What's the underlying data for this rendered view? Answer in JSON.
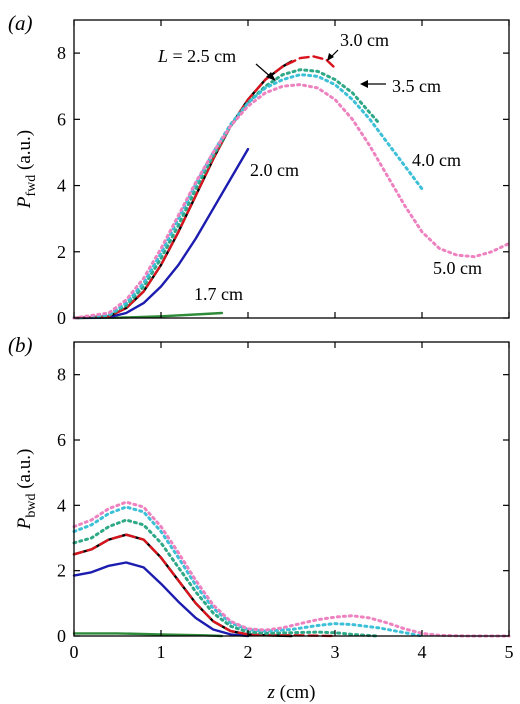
{
  "chart_data": [
    {
      "panel": "(a)",
      "type": "line",
      "ylabel_main": "P",
      "ylabel_sub": "fwd",
      "ylabel_unit": " (a.u.)",
      "xlabel": "",
      "xlim": [
        0,
        5
      ],
      "ylim": [
        0,
        9
      ],
      "yticks": [
        0,
        2,
        4,
        6,
        8
      ],
      "annotations": [
        "L = 2.5 cm",
        "3.0 cm",
        "3.5 cm",
        "4.0 cm",
        "5.0 cm",
        "2.0 cm",
        "1.7 cm"
      ],
      "series": [
        {
          "name": "1.7 cm",
          "color": "#2e8b3a",
          "dash": "solid",
          "x": [
            0,
            0.5,
            1.0,
            1.5,
            1.7
          ],
          "y": [
            0,
            0.01,
            0.05,
            0.12,
            0.15
          ]
        },
        {
          "name": "2.0 cm",
          "color": "#1c1cb0",
          "dash": "solid",
          "x": [
            0,
            0.4,
            0.6,
            0.8,
            1.0,
            1.2,
            1.4,
            1.6,
            1.8,
            2.0
          ],
          "y": [
            0,
            0.02,
            0.15,
            0.45,
            0.95,
            1.6,
            2.4,
            3.3,
            4.2,
            5.1
          ]
        },
        {
          "name": "2.5 cm",
          "color": "#000000",
          "dash": "solid",
          "x": [
            0,
            0.4,
            0.6,
            0.8,
            1.0,
            1.2,
            1.4,
            1.6,
            1.8,
            2.0,
            2.2,
            2.4,
            2.5
          ],
          "y": [
            0,
            0.05,
            0.3,
            0.8,
            1.6,
            2.6,
            3.7,
            4.8,
            5.8,
            6.6,
            7.2,
            7.6,
            7.75
          ]
        },
        {
          "name": "3.0 cm",
          "color": "#d9141e",
          "dash": "dash",
          "x": [
            0,
            0.4,
            0.6,
            0.8,
            1.0,
            1.2,
            1.4,
            1.6,
            1.8,
            2.0,
            2.2,
            2.4,
            2.6,
            2.75,
            2.9,
            3.0
          ],
          "y": [
            0,
            0.05,
            0.3,
            0.8,
            1.6,
            2.6,
            3.7,
            4.8,
            5.8,
            6.6,
            7.2,
            7.6,
            7.85,
            7.9,
            7.8,
            7.55
          ]
        },
        {
          "name": "3.5 cm",
          "color": "#2ea886",
          "dash": "dot",
          "x": [
            0,
            0.4,
            0.6,
            0.8,
            1.0,
            1.2,
            1.4,
            1.6,
            1.8,
            2.0,
            2.2,
            2.4,
            2.6,
            2.8,
            3.0,
            3.2,
            3.4,
            3.5
          ],
          "y": [
            0,
            0.08,
            0.38,
            0.95,
            1.8,
            2.8,
            3.9,
            4.9,
            5.8,
            6.5,
            7.0,
            7.35,
            7.5,
            7.45,
            7.2,
            6.8,
            6.2,
            5.9
          ]
        },
        {
          "name": "4.0 cm",
          "color": "#3cc0d8",
          "dash": "dot",
          "x": [
            0,
            0.4,
            0.6,
            0.8,
            1.0,
            1.2,
            1.4,
            1.6,
            1.8,
            2.0,
            2.2,
            2.4,
            2.6,
            2.8,
            3.0,
            3.2,
            3.4,
            3.6,
            3.8,
            4.0
          ],
          "y": [
            0,
            0.1,
            0.45,
            1.05,
            1.95,
            3.0,
            4.05,
            5.0,
            5.85,
            6.5,
            6.95,
            7.2,
            7.35,
            7.3,
            7.05,
            6.6,
            6.0,
            5.3,
            4.6,
            3.9
          ]
        },
        {
          "name": "5.0 cm",
          "color": "#ee82c0",
          "dash": "dot",
          "x": [
            0,
            0.4,
            0.6,
            0.8,
            1.0,
            1.2,
            1.4,
            1.6,
            1.8,
            2.0,
            2.2,
            2.4,
            2.6,
            2.8,
            3.0,
            3.2,
            3.4,
            3.6,
            3.8,
            4.0,
            4.2,
            4.4,
            4.6,
            4.8,
            5.0
          ],
          "y": [
            0,
            0.15,
            0.55,
            1.2,
            2.1,
            3.1,
            4.1,
            5.0,
            5.8,
            6.4,
            6.8,
            7.0,
            7.05,
            6.95,
            6.6,
            6.0,
            5.2,
            4.3,
            3.4,
            2.6,
            2.1,
            1.9,
            1.85,
            2.0,
            2.25
          ]
        }
      ]
    },
    {
      "panel": "(b)",
      "type": "line",
      "ylabel_main": "P",
      "ylabel_sub": "bwd",
      "ylabel_unit": " (a.u.)",
      "xlabel": "z (cm)",
      "xlabel_var": "z",
      "xlabel_unit": " (cm)",
      "xlim": [
        0,
        5
      ],
      "ylim": [
        0,
        9
      ],
      "xticks": [
        0,
        1,
        2,
        3,
        4,
        5
      ],
      "yticks": [
        0,
        2,
        4,
        6,
        8
      ],
      "series": [
        {
          "name": "1.7 cm",
          "color": "#2e8b3a",
          "dash": "solid",
          "x": [
            0,
            0.5,
            1.0,
            1.5,
            1.7
          ],
          "y": [
            0.08,
            0.08,
            0.05,
            0.02,
            0.0
          ]
        },
        {
          "name": "2.0 cm",
          "color": "#1c1cb0",
          "dash": "solid",
          "x": [
            0,
            0.2,
            0.4,
            0.6,
            0.8,
            1.0,
            1.2,
            1.4,
            1.6,
            1.8,
            2.0
          ],
          "y": [
            1.85,
            1.95,
            2.15,
            2.25,
            2.1,
            1.6,
            1.05,
            0.55,
            0.2,
            0.05,
            0.0
          ]
        },
        {
          "name": "2.5 cm",
          "color": "#000000",
          "dash": "solid",
          "x": [
            0,
            0.2,
            0.4,
            0.6,
            0.8,
            1.0,
            1.2,
            1.4,
            1.6,
            1.8,
            2.0,
            2.2,
            2.5
          ],
          "y": [
            2.5,
            2.65,
            2.95,
            3.1,
            2.95,
            2.4,
            1.7,
            1.0,
            0.45,
            0.15,
            0.05,
            0.02,
            0.0
          ]
        },
        {
          "name": "3.0 cm",
          "color": "#d9141e",
          "dash": "dash",
          "x": [
            0,
            0.2,
            0.4,
            0.6,
            0.8,
            1.0,
            1.2,
            1.4,
            1.6,
            1.8,
            2.0,
            2.2,
            2.5,
            2.8,
            3.0
          ],
          "y": [
            2.5,
            2.65,
            2.95,
            3.1,
            2.95,
            2.4,
            1.7,
            1.0,
            0.45,
            0.15,
            0.05,
            0.02,
            0.02,
            0.01,
            0.0
          ]
        },
        {
          "name": "3.5 cm",
          "color": "#2ea886",
          "dash": "dot",
          "x": [
            0,
            0.2,
            0.4,
            0.6,
            0.8,
            1.0,
            1.2,
            1.4,
            1.6,
            1.8,
            2.0,
            2.2,
            2.5,
            2.8,
            3.0,
            3.2,
            3.5
          ],
          "y": [
            2.85,
            3.0,
            3.35,
            3.55,
            3.4,
            2.85,
            2.1,
            1.35,
            0.7,
            0.3,
            0.12,
            0.08,
            0.1,
            0.12,
            0.1,
            0.05,
            0.0
          ]
        },
        {
          "name": "4.0 cm",
          "color": "#3cc0d8",
          "dash": "dot",
          "x": [
            0,
            0.2,
            0.4,
            0.6,
            0.8,
            1.0,
            1.2,
            1.4,
            1.6,
            1.8,
            2.0,
            2.2,
            2.5,
            2.8,
            3.0,
            3.2,
            3.5,
            3.8,
            4.0
          ],
          "y": [
            3.2,
            3.4,
            3.75,
            3.95,
            3.8,
            3.2,
            2.4,
            1.55,
            0.85,
            0.4,
            0.2,
            0.15,
            0.2,
            0.32,
            0.38,
            0.35,
            0.25,
            0.1,
            0.0
          ]
        },
        {
          "name": "5.0 cm",
          "color": "#ee82c0",
          "dash": "dot",
          "x": [
            0,
            0.2,
            0.4,
            0.6,
            0.8,
            1.0,
            1.2,
            1.4,
            1.6,
            1.8,
            2.0,
            2.2,
            2.4,
            2.6,
            2.8,
            3.0,
            3.2,
            3.4,
            3.6,
            3.8,
            4.0,
            4.2,
            4.5,
            5.0
          ],
          "y": [
            3.35,
            3.55,
            3.9,
            4.1,
            3.95,
            3.35,
            2.55,
            1.7,
            0.95,
            0.45,
            0.22,
            0.18,
            0.25,
            0.38,
            0.5,
            0.58,
            0.62,
            0.55,
            0.4,
            0.22,
            0.08,
            0.02,
            0.0,
            0.0
          ]
        }
      ]
    }
  ]
}
